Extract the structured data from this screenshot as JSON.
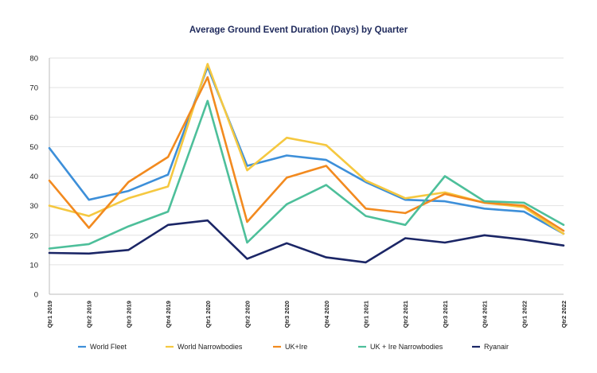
{
  "chart_data": {
    "type": "line",
    "title": "Average Ground Event Duration (Days) by Quarter",
    "xlabel": "",
    "ylabel": "",
    "ylim": [
      0,
      80
    ],
    "yticks": [
      0,
      10,
      20,
      30,
      40,
      50,
      60,
      70,
      80
    ],
    "grid": true,
    "legend_position": "bottom",
    "categories": [
      "Qtr1 2019",
      "Qtr2 2019",
      "Qtr3 2019",
      "Qtr4 2019",
      "Qtr1 2020",
      "Qtr2 2020",
      "Qtr3 2020",
      "Qtr4 2020",
      "Qtr1 2021",
      "Qtr2 2021",
      "Qtr3 2021",
      "Qtr4 2021",
      "Qtr1 2022",
      "Qtr2 2022"
    ],
    "series": [
      {
        "name": "World Fleet",
        "color": "#3d8fd9",
        "values": [
          49.5,
          32,
          35,
          40.5,
          77,
          43.5,
          47,
          45.5,
          38,
          32,
          31.5,
          29,
          28,
          20.5
        ]
      },
      {
        "name": "World Narrowbodies",
        "color": "#f5c840",
        "values": [
          30,
          26.5,
          32.5,
          36.5,
          78,
          42,
          53,
          50.5,
          38.5,
          32.5,
          34.5,
          31,
          29.5,
          20.5
        ]
      },
      {
        "name": "UK+Ire",
        "color": "#f28a1f",
        "values": [
          38.5,
          22.5,
          38,
          46.5,
          73.5,
          24.5,
          39.5,
          43.5,
          29,
          27.5,
          34,
          31,
          30,
          21.5
        ]
      },
      {
        "name": "UK + Ire Narrowbodies",
        "color": "#4dbf9a",
        "values": [
          15.5,
          17,
          23,
          28,
          65.5,
          17.5,
          30.5,
          37,
          26.5,
          23.5,
          40,
          31.5,
          31,
          23.5
        ]
      },
      {
        "name": "Ryanair",
        "color": "#1b2666",
        "values": [
          14,
          13.8,
          15,
          23.5,
          25,
          12,
          17.3,
          12.5,
          10.8,
          19,
          17.5,
          20,
          18.5,
          16.5
        ]
      }
    ]
  }
}
